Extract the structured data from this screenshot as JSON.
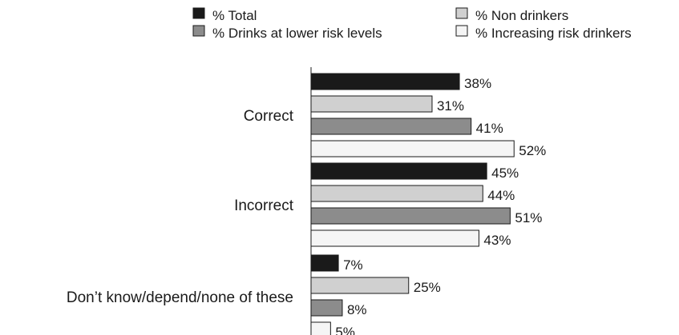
{
  "chart_data": {
    "type": "bar",
    "orientation": "horizontal",
    "categories": [
      "Correct",
      "Incorrect",
      "Don’t know/depend/none of these"
    ],
    "series": [
      {
        "name": "% Total",
        "values": [
          38,
          45,
          7
        ],
        "color": "#1a1a1a"
      },
      {
        "name": "% Non drinkers",
        "values": [
          31,
          44,
          25
        ],
        "color": "#d0d0d0"
      },
      {
        "name": "% Drinks at lower risk levels",
        "values": [
          41,
          51,
          8
        ],
        "color": "#8c8c8c"
      },
      {
        "name": "% Increasing risk drinkers",
        "values": [
          52,
          43,
          5
        ],
        "color": "#f5f5f5"
      }
    ],
    "value_labels": [
      [
        "38%",
        "31%",
        "41%",
        "52%"
      ],
      [
        "45%",
        "44%",
        "51%",
        "43%"
      ],
      [
        "7%",
        "25%",
        "8%",
        "5%"
      ]
    ],
    "xlim": [
      0,
      100
    ],
    "grid": false,
    "legend_position": "top"
  }
}
